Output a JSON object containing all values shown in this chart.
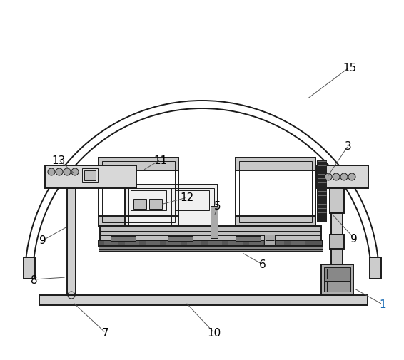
{
  "line_color": "#1a1a1a",
  "thin_line": 0.7,
  "medium_line": 1.4,
  "thick_line": 2.2,
  "bg_color": "#ffffff",
  "label_color": "#000000",
  "blue_color": "#1a6cb5",
  "figsize": [
    5.66,
    5.06
  ],
  "dpi": 100
}
